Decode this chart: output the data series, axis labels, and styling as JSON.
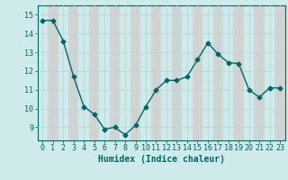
{
  "x": [
    0,
    1,
    2,
    3,
    4,
    5,
    6,
    7,
    8,
    9,
    10,
    11,
    12,
    13,
    14,
    15,
    16,
    17,
    18,
    19,
    20,
    21,
    22,
    23
  ],
  "y": [
    14.7,
    14.7,
    13.6,
    11.7,
    10.1,
    9.7,
    8.9,
    9.0,
    8.6,
    9.1,
    10.1,
    11.0,
    11.5,
    11.5,
    11.7,
    12.6,
    13.5,
    12.9,
    12.45,
    12.4,
    11.0,
    10.6,
    11.1,
    11.1
  ],
  "line_color": "#006666",
  "marker": "D",
  "marker_size": 2.5,
  "bg_color": "#ceeaea",
  "grid_color": "#b8d8d8",
  "pink_color": "#d8b8b8",
  "xlabel": "Humidex (Indice chaleur)",
  "xlabel_fontsize": 7,
  "tick_fontsize": 6,
  "ylim": [
    8.3,
    15.5
  ],
  "xlim": [
    -0.5,
    23.5
  ],
  "yticks": [
    9,
    10,
    11,
    12,
    13,
    14,
    15
  ],
  "xticks": [
    0,
    1,
    2,
    3,
    4,
    5,
    6,
    7,
    8,
    9,
    10,
    11,
    12,
    13,
    14,
    15,
    16,
    17,
    18,
    19,
    20,
    21,
    22,
    23
  ]
}
